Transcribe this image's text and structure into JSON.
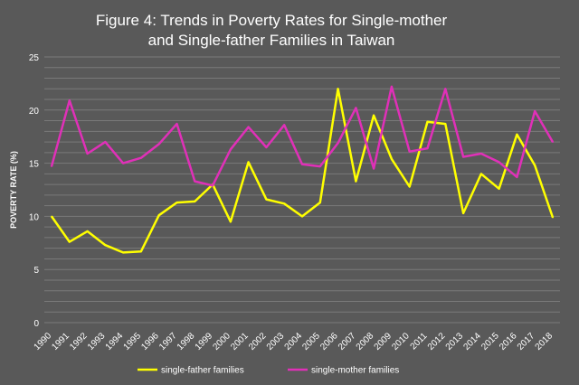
{
  "chart_data": {
    "type": "line",
    "title_lines": [
      "Figure 4: Trends in Poverty Rates for Single-mother",
      "and Single-father Families in Taiwan"
    ],
    "ylabel": "POVERTY RATE (%)",
    "xlabel": "",
    "ylim": [
      0,
      25
    ],
    "yticks": [
      "0",
      "5",
      "10",
      "15",
      "20",
      "25"
    ],
    "grid": true,
    "legend_position": "bottom",
    "x": [
      "1990",
      "1991",
      "1992",
      "1993",
      "1994",
      "1995",
      "1996",
      "1997",
      "1998",
      "1999",
      "2000",
      "2001",
      "2002",
      "2003",
      "2004",
      "2005",
      "2006",
      "2007",
      "2008",
      "2009",
      "2010",
      "2011",
      "2012",
      "2013",
      "2014",
      "2015",
      "2016",
      "2017",
      "2018"
    ],
    "series": [
      {
        "name": "single-father families",
        "color": "#ffff00",
        "values": [
          10.0,
          7.6,
          8.6,
          7.3,
          6.6,
          6.7,
          10.1,
          11.3,
          11.4,
          13.0,
          9.5,
          15.1,
          11.6,
          11.2,
          10.0,
          11.3,
          22.0,
          13.3,
          19.5,
          15.4,
          12.8,
          18.9,
          18.7,
          10.3,
          14.0,
          12.6,
          17.7,
          14.8,
          9.9
        ]
      },
      {
        "name": "single-mother families",
        "color": "#e030b8",
        "values": [
          14.7,
          20.9,
          15.9,
          17.0,
          15.0,
          15.5,
          16.8,
          18.7,
          13.3,
          12.9,
          16.3,
          18.4,
          16.5,
          18.6,
          14.9,
          14.7,
          16.9,
          20.2,
          14.5,
          22.2,
          16.1,
          16.4,
          22.0,
          15.6,
          15.9,
          15.1,
          13.7,
          19.9,
          17.0
        ]
      }
    ]
  }
}
